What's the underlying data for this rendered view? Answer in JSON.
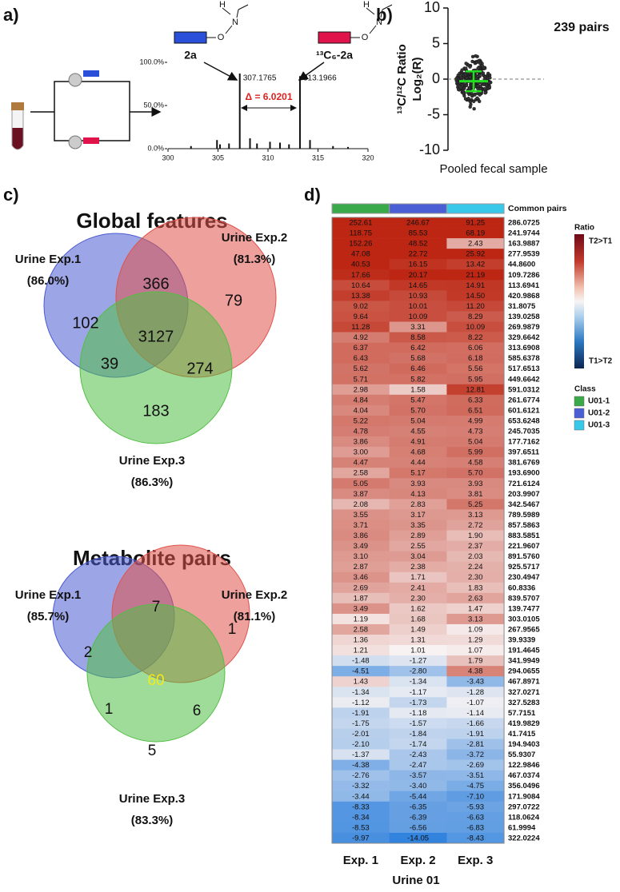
{
  "chart_data": [
    {
      "type": "bar",
      "label": "a)",
      "compound_light": "2a",
      "compound_heavy": "¹³C₆-2a",
      "atoms": [
        "H",
        "N",
        "O"
      ],
      "xlim": [
        300,
        320
      ],
      "xticks": [
        300,
        305,
        310,
        315,
        320
      ],
      "ylim": [
        0,
        100
      ],
      "yticks": [
        {
          "value": 0,
          "label": "0.0%"
        },
        {
          "value": 50,
          "label": "50.0%"
        },
        {
          "value": 100,
          "label": "100.0%"
        }
      ],
      "x": [
        307.1765,
        313.1966,
        302.3,
        304.9,
        305.2,
        306.1,
        308.2,
        308.9,
        310.2,
        311.2,
        312.1,
        314.2,
        316.5,
        318.0
      ],
      "values": [
        87,
        84,
        3,
        10,
        5,
        6,
        12,
        6,
        8,
        7,
        5,
        10,
        3,
        2
      ],
      "color": "#111111",
      "annotation": "Δ = 6.0201",
      "annotation_color": "#e02020"
    },
    {
      "type": "scatter",
      "label": "b)",
      "annotation": "239 pairs",
      "ylabel": [
        "¹³C/¹²C Ratio",
        "Log₂(R)"
      ],
      "xlabel": "Pooled fecal sample",
      "ylim": [
        -10,
        10
      ],
      "yticks": [
        -10,
        -5,
        0,
        5,
        10
      ],
      "mean": -0.3,
      "sd": 1.4,
      "color": "#22dd22",
      "reference_line": 0
    }
  ],
  "venn_global": {
    "label": "c)",
    "title": "Global features",
    "sets": [
      {
        "name": "Urine Exp.1",
        "percent": "(86.0%)",
        "color": "#4a5bd0"
      },
      {
        "name": "Urine Exp.2",
        "percent": "(81.3%)",
        "color": "#e0524a"
      },
      {
        "name": "Urine Exp.3",
        "percent": "(86.3%)",
        "color": "#52bf45"
      }
    ],
    "regions": [
      "102",
      "366",
      "79",
      "3127",
      "39",
      "274",
      "183"
    ]
  },
  "venn_pairs": {
    "title": "Metabolite pairs",
    "sets": [
      {
        "name": "Urine Exp.1",
        "percent": "(85.7%)",
        "color": "#4a5bd0"
      },
      {
        "name": "Urine Exp.2",
        "percent": "(81.1%)",
        "color": "#e0524a"
      },
      {
        "name": "Urine Exp.3",
        "percent": "(83.3%)",
        "color": "#52bf45"
      }
    ],
    "regions": [
      "2",
      "7",
      "1",
      "60",
      "1",
      "6",
      "5"
    ],
    "highlight_color": "#f2ea1a"
  },
  "heatmap": {
    "label": "d)",
    "class_header": "Common pairs",
    "columns": [
      "Exp. 1",
      "Exp. 2",
      "Exp. 3"
    ],
    "group": "Urine 01",
    "ratio_legend": {
      "title": "Ratio",
      "high": "T2>T1",
      "low": "T1>T2"
    },
    "class_legend": {
      "title": "Class",
      "classes": [
        {
          "name": "U01-1",
          "color": "#3aa94a"
        },
        {
          "name": "U01-2",
          "color": "#4a5fd3"
        },
        {
          "name": "U01-3",
          "color": "#38c8ea"
        }
      ]
    },
    "rows": [
      [
        "252.61",
        "246.67",
        "91.25",
        "286.0725"
      ],
      [
        "118.75",
        "85.53",
        "68.19",
        "241.9744"
      ],
      [
        "152.26",
        "48.52",
        "2.43",
        "163.9887"
      ],
      [
        "47.08",
        "22.72",
        "25.92",
        "277.9539"
      ],
      [
        "40.53",
        "16.15",
        "13.42",
        "44.8600"
      ],
      [
        "17.66",
        "20.17",
        "21.19",
        "109.7286"
      ],
      [
        "10.64",
        "14.65",
        "14.91",
        "113.6941"
      ],
      [
        "13.38",
        "10.93",
        "14.50",
        "420.9868"
      ],
      [
        "9.02",
        "10.01",
        "11.20",
        "31.8075"
      ],
      [
        "9.64",
        "10.09",
        "8.29",
        "139.0258"
      ],
      [
        "11.28",
        "3.31",
        "10.09",
        "269.9879"
      ],
      [
        "4.92",
        "8.58",
        "8.22",
        "329.6642"
      ],
      [
        "6.37",
        "6.42",
        "6.06",
        "313.6908"
      ],
      [
        "6.43",
        "5.68",
        "6.18",
        "585.6378"
      ],
      [
        "5.62",
        "6.46",
        "5.56",
        "517.6513"
      ],
      [
        "5.71",
        "5.82",
        "5.95",
        "449.6642"
      ],
      [
        "2.98",
        "1.58",
        "12.81",
        "591.0312"
      ],
      [
        "4.84",
        "5.47",
        "6.33",
        "261.6774"
      ],
      [
        "4.04",
        "5.70",
        "6.51",
        "601.6121"
      ],
      [
        "5.22",
        "5.04",
        "4.99",
        "653.6248"
      ],
      [
        "4.78",
        "4.55",
        "4.73",
        "245.7035"
      ],
      [
        "3.86",
        "4.91",
        "5.04",
        "177.7162"
      ],
      [
        "3.00",
        "4.68",
        "5.99",
        "397.6511"
      ],
      [
        "4.47",
        "4.44",
        "4.58",
        "381.6769"
      ],
      [
        "2.58",
        "5.17",
        "5.70",
        "193.6900"
      ],
      [
        "5.05",
        "3.93",
        "3.93",
        "721.6124"
      ],
      [
        "3.87",
        "4.13",
        "3.81",
        "203.9907"
      ],
      [
        "2.08",
        "2.83",
        "5.25",
        "342.5467"
      ],
      [
        "3.55",
        "3.17",
        "3.13",
        "789.5989"
      ],
      [
        "3.71",
        "3.35",
        "2.72",
        "857.5863"
      ],
      [
        "3.86",
        "2.89",
        "1.90",
        "883.5851"
      ],
      [
        "3.49",
        "2.55",
        "2.37",
        "221.9607"
      ],
      [
        "3.10",
        "3.04",
        "2.03",
        "891.5760"
      ],
      [
        "2.87",
        "2.38",
        "2.24",
        "925.5717"
      ],
      [
        "3.46",
        "1.71",
        "2.30",
        "230.4947"
      ],
      [
        "2.69",
        "2.41",
        "1.83",
        "60.8336"
      ],
      [
        "1.87",
        "2.30",
        "2.63",
        "839.5707"
      ],
      [
        "3.49",
        "1.62",
        "1.47",
        "139.7477"
      ],
      [
        "1.19",
        "1.68",
        "3.13",
        "303.0105"
      ],
      [
        "2.58",
        "1.49",
        "1.09",
        "267.9565"
      ],
      [
        "1.36",
        "1.31",
        "1.29",
        "39.9339"
      ],
      [
        "1.21",
        "1.01",
        "1.07",
        "191.4645"
      ],
      [
        "-1.48",
        "-1.27",
        "1.79",
        "341.9949"
      ],
      [
        "-4.51",
        "-2.80",
        "4.38",
        "294.0655"
      ],
      [
        "1.43",
        "-1.34",
        "-3.43",
        "467.8971"
      ],
      [
        "-1.34",
        "-1.17",
        "-1.28",
        "327.0271"
      ],
      [
        "-1.12",
        "-1.73",
        "-1.07",
        "327.5283"
      ],
      [
        "-1.91",
        "-1.18",
        "-1.14",
        "57.7151"
      ],
      [
        "-1.75",
        "-1.57",
        "-1.66",
        "419.9829"
      ],
      [
        "-2.01",
        "-1.84",
        "-1.91",
        "41.7415"
      ],
      [
        "-2.10",
        "-1.74",
        "-2.81",
        "194.9403"
      ],
      [
        "-1.37",
        "-2.43",
        "-3.72",
        "55.9307"
      ],
      [
        "-4.38",
        "-2.47",
        "-2.69",
        "122.9846"
      ],
      [
        "-2.76",
        "-3.57",
        "-3.51",
        "467.0374"
      ],
      [
        "-3.32",
        "-3.40",
        "-4.75",
        "356.0496"
      ],
      [
        "-3.44",
        "-5.44",
        "-7.10",
        "171.9084"
      ],
      [
        "-8.33",
        "-6.35",
        "-5.93",
        "297.0722"
      ],
      [
        "-8.34",
        "-6.39",
        "-6.63",
        "118.0624"
      ],
      [
        "-8.53",
        "-6.56",
        "-6.83",
        "61.9994"
      ],
      [
        "-9.97",
        "-14.05",
        "-8.43",
        "322.0224"
      ]
    ]
  }
}
